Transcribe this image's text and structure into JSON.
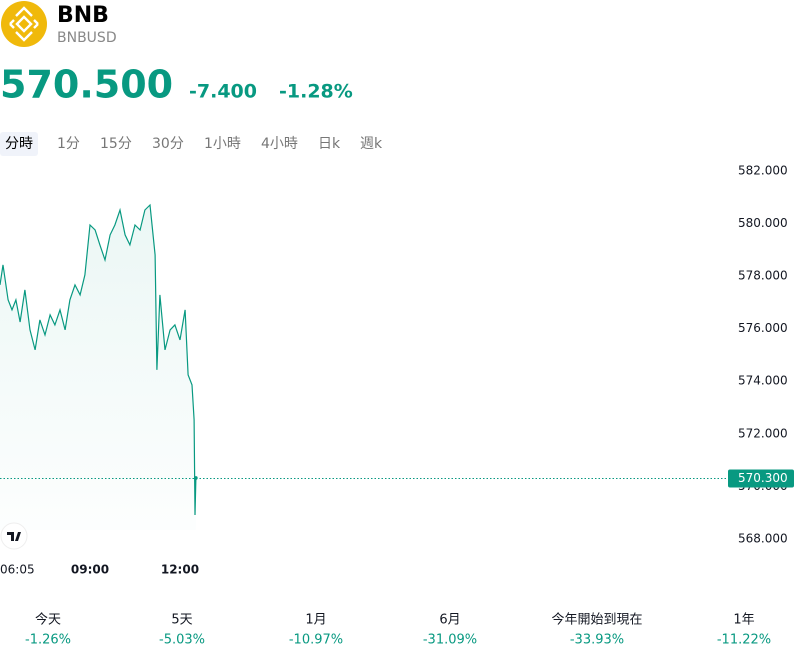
{
  "header": {
    "symbol": "BNB",
    "pair": "BNBUSD"
  },
  "quote": {
    "price": "570.500",
    "change": "-7.400",
    "change_pct": "-1.28%"
  },
  "tabs": [
    "分時",
    "1分",
    "15分",
    "30分",
    "1小時",
    "4小時",
    "日k",
    "週k"
  ],
  "chart_data": {
    "type": "line",
    "color": "#089981",
    "x": [
      6.0,
      6.1,
      6.27,
      6.4,
      6.53,
      6.67,
      6.83,
      7.0,
      7.17,
      7.33,
      7.5,
      7.67,
      7.83,
      8.0,
      8.17,
      8.33,
      8.5,
      8.67,
      8.83,
      9.0,
      9.17,
      9.33,
      9.5,
      9.67,
      9.83,
      10.0,
      10.17,
      10.33,
      10.5,
      10.67,
      10.83,
      11.0,
      11.17,
      11.23,
      11.33,
      11.5,
      11.67,
      11.83,
      12.0,
      12.17,
      12.27,
      12.4,
      12.47,
      12.5,
      12.53
    ],
    "values": [
      577.66,
      578.42,
      577.09,
      576.71,
      577.09,
      576.25,
      577.47,
      575.95,
      575.19,
      576.33,
      575.76,
      576.52,
      576.14,
      576.71,
      575.95,
      577.09,
      577.66,
      577.28,
      578.04,
      579.94,
      579.75,
      579.18,
      578.61,
      579.56,
      579.94,
      580.51,
      579.56,
      579.18,
      579.94,
      579.75,
      580.51,
      580.7,
      578.8,
      574.43,
      577.28,
      575.19,
      575.95,
      576.14,
      575.57,
      576.71,
      574.24,
      573.86,
      572.53,
      568.91,
      570.32
    ],
    "xlim": [
      6.0,
      30.17
    ],
    "xticks": [
      {
        "value": 6.083,
        "label": "06:05"
      },
      {
        "value": 9,
        "label": "09:00"
      },
      {
        "value": 12,
        "label": "12:00"
      }
    ],
    "ylim": [
      567.2,
      582.6
    ],
    "yticks": [
      {
        "value": 568,
        "label": "568.000"
      },
      {
        "value": 570,
        "label": "570.000"
      },
      {
        "value": 572,
        "label": "572.000"
      },
      {
        "value": 574,
        "label": "574.000"
      },
      {
        "value": 576,
        "label": "576.000"
      },
      {
        "value": 578,
        "label": "578.000"
      },
      {
        "value": 580,
        "label": "580.000"
      },
      {
        "value": 582,
        "label": "582.000"
      }
    ],
    "last_price": {
      "value": 570.3,
      "label": "570.300"
    }
  },
  "performance": [
    {
      "label": "今天",
      "value": "-1.26%"
    },
    {
      "label": "5天",
      "value": "-5.03%"
    },
    {
      "label": "1月",
      "value": "-10.97%"
    },
    {
      "label": "6月",
      "value": "-31.09%"
    },
    {
      "label": "今年開始到現在",
      "value": "-33.93%"
    },
    {
      "label": "1年",
      "value": "-11.22%"
    }
  ]
}
